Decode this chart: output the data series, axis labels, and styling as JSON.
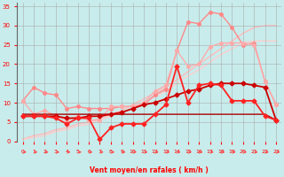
{
  "xlabel": "Vent moyen/en rafales ( km/h )",
  "background_color": "#c8ecec",
  "grid_color": "#aaaaaa",
  "xlim": [
    -0.5,
    23.5
  ],
  "ylim": [
    0,
    36
  ],
  "xticks": [
    0,
    1,
    2,
    3,
    4,
    5,
    6,
    7,
    8,
    9,
    10,
    11,
    12,
    13,
    14,
    15,
    16,
    17,
    18,
    19,
    20,
    21,
    22,
    23
  ],
  "yticks": [
    0,
    5,
    10,
    15,
    20,
    25,
    30,
    35
  ],
  "series": [
    {
      "x": [
        0,
        1,
        2,
        3,
        4,
        5,
        6,
        7,
        8,
        9,
        10,
        11,
        12,
        13,
        14,
        15,
        16,
        17,
        18,
        19,
        20,
        21,
        22,
        23
      ],
      "y": [
        0.5,
        1.5,
        2.0,
        3.0,
        3.5,
        4.5,
        5.0,
        6.0,
        7.0,
        8.0,
        9.5,
        11.0,
        12.5,
        14.0,
        16.0,
        18.0,
        20.0,
        22.0,
        24.0,
        26.0,
        28.0,
        29.5,
        30.0,
        30.0
      ],
      "color": "#ffbbbb",
      "linewidth": 1.0,
      "marker": null,
      "markersize": 0,
      "zorder": 1
    },
    {
      "x": [
        0,
        1,
        2,
        3,
        4,
        5,
        6,
        7,
        8,
        9,
        10,
        11,
        12,
        13,
        14,
        15,
        16,
        17,
        18,
        19,
        20,
        21,
        22,
        23
      ],
      "y": [
        0.5,
        1.0,
        1.5,
        2.5,
        3.0,
        4.0,
        4.5,
        5.5,
        6.5,
        7.5,
        8.5,
        10.0,
        11.5,
        13.0,
        15.0,
        17.0,
        18.5,
        20.5,
        22.5,
        24.0,
        25.5,
        26.0,
        26.0,
        26.0
      ],
      "color": "#ffcccc",
      "linewidth": 1.0,
      "marker": null,
      "markersize": 0,
      "zorder": 1
    },
    {
      "x": [
        0,
        1,
        2,
        3,
        4,
        5,
        6,
        7,
        8,
        9,
        10,
        11,
        12,
        13,
        14,
        15,
        16,
        17,
        18,
        19,
        20,
        21,
        22,
        23
      ],
      "y": [
        10.5,
        14.0,
        12.5,
        12.0,
        8.5,
        9.0,
        8.5,
        8.5,
        8.5,
        9.0,
        9.0,
        9.5,
        12.0,
        13.5,
        23.5,
        31.0,
        30.5,
        33.5,
        33.0,
        29.5,
        25.0,
        25.5,
        15.5,
        9.5
      ],
      "color": "#ff8888",
      "linewidth": 1.0,
      "marker": "o",
      "markersize": 2.5,
      "zorder": 2
    },
    {
      "x": [
        0,
        1,
        2,
        3,
        4,
        5,
        6,
        7,
        8,
        9,
        10,
        11,
        12,
        13,
        14,
        15,
        16,
        17,
        18,
        19,
        20,
        21,
        22,
        23
      ],
      "y": [
        10.5,
        7.0,
        8.0,
        6.5,
        5.5,
        6.5,
        5.5,
        5.5,
        9.0,
        9.0,
        9.0,
        10.0,
        13.0,
        14.5,
        23.5,
        19.5,
        20.0,
        24.5,
        25.5,
        25.5,
        25.5,
        25.0,
        15.5,
        9.5
      ],
      "color": "#ffaaaa",
      "linewidth": 1.0,
      "marker": "o",
      "markersize": 2.5,
      "zorder": 2
    },
    {
      "x": [
        0,
        1,
        2,
        3,
        4,
        5,
        6,
        7,
        8,
        9,
        10,
        11,
        12,
        13,
        14,
        15,
        16,
        17,
        18,
        19,
        20,
        21,
        22,
        23
      ],
      "y": [
        6.5,
        6.5,
        6.5,
        6.5,
        6.0,
        6.0,
        6.5,
        6.5,
        7.0,
        7.5,
        8.5,
        9.5,
        10.0,
        11.0,
        12.0,
        13.0,
        13.5,
        14.5,
        15.0,
        15.0,
        15.0,
        14.5,
        14.0,
        5.5
      ],
      "color": "#cc0000",
      "linewidth": 1.3,
      "marker": "D",
      "markersize": 2.5,
      "zorder": 4
    },
    {
      "x": [
        0,
        1,
        2,
        3,
        4,
        5,
        6,
        7,
        8,
        9,
        10,
        11,
        12,
        13,
        14,
        15,
        16,
        17,
        18,
        19,
        20,
        21,
        22,
        23
      ],
      "y": [
        6.5,
        6.5,
        6.5,
        6.0,
        4.5,
        6.0,
        6.0,
        0.5,
        3.5,
        4.5,
        4.5,
        4.5,
        7.0,
        9.5,
        19.5,
        10.0,
        14.5,
        15.0,
        14.5,
        10.5,
        10.5,
        10.5,
        6.5,
        5.5
      ],
      "color": "#ff2222",
      "linewidth": 1.3,
      "marker": "D",
      "markersize": 2.5,
      "zorder": 4
    },
    {
      "x": [
        0,
        1,
        2,
        3,
        4,
        5,
        6,
        7,
        8,
        9,
        10,
        11,
        12,
        13,
        14,
        15,
        16,
        17,
        18,
        19,
        20,
        21,
        22,
        23
      ],
      "y": [
        7.0,
        7.0,
        7.0,
        7.0,
        7.0,
        7.0,
        7.0,
        7.0,
        7.0,
        7.0,
        7.0,
        7.0,
        7.0,
        7.0,
        7.0,
        7.0,
        7.0,
        7.0,
        7.0,
        7.0,
        7.0,
        7.0,
        7.0,
        5.5
      ],
      "color": "#aa0000",
      "linewidth": 1.0,
      "marker": null,
      "markersize": 0,
      "zorder": 3
    }
  ],
  "arrow_color": "#ff4444",
  "tick_color": "#ff0000",
  "label_color": "#ff0000"
}
